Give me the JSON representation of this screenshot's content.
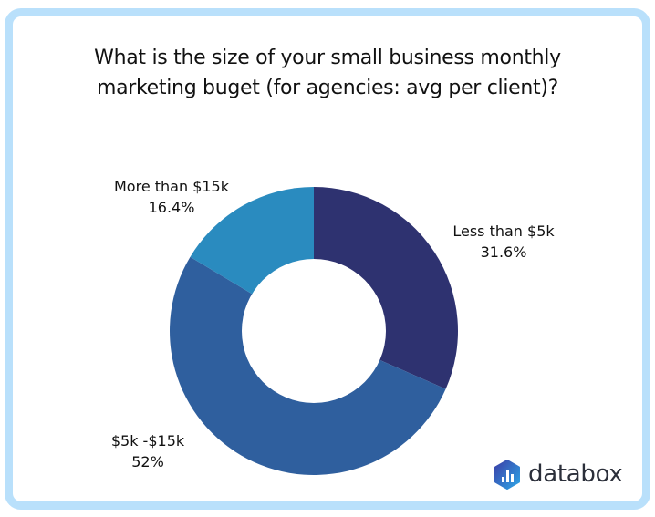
{
  "title": {
    "line1": "What is the size of your small business monthly",
    "line2": "marketing buget (for agencies: avg per client)?"
  },
  "brand": {
    "name": "databox",
    "icon": "databox-logo-icon"
  },
  "colors": {
    "frame": "#b9e0fb",
    "less_than_5k": "#2e3270",
    "5k_15k": "#2f5f9e",
    "more_than_15k": "#2a8bbf"
  },
  "labels": {
    "less_than_5k": {
      "name": "Less than $5k",
      "value": "31.6%"
    },
    "5k_15k": {
      "name": "$5k -$15k",
      "value": "52%"
    },
    "more_than_15k": {
      "name": "More than $15k",
      "value": "16.4%"
    }
  },
  "chart_data": {
    "type": "pie",
    "variant": "donut",
    "title": "What is the size of your small business monthly marketing buget (for agencies: avg per client)?",
    "categories": [
      "Less than $5k",
      "$5k -$15k",
      "More than $15k"
    ],
    "values": [
      31.6,
      52,
      16.4
    ],
    "unit": "%",
    "colors": [
      "#2e3270",
      "#2f5f9e",
      "#2a8bbf"
    ],
    "start_angle": "12 o'clock, clockwise",
    "legend": "none (direct labels)"
  }
}
